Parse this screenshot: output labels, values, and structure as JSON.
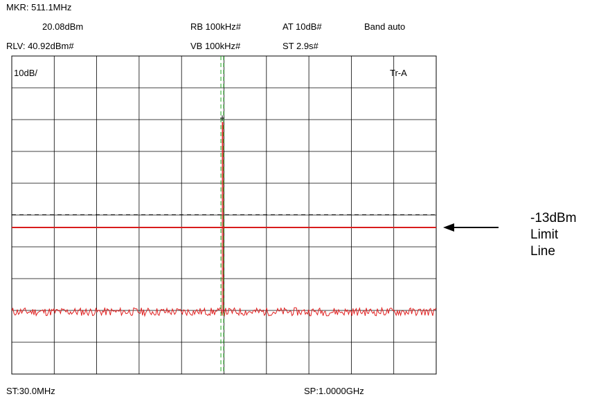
{
  "header": {
    "mkr": "MKR: 511.1MHz",
    "mkr_level": "20.08dBm",
    "rlv": "RLV: 40.92dBm#",
    "rbw": "RB 100kHz#",
    "vbw": "VB 100kHz#",
    "att": "AT 10dB#",
    "sweep": "ST 2.9s#",
    "band": "Band auto"
  },
  "footer": {
    "start": "ST:30.0MHz",
    "stop": "SP:1.0000GHz"
  },
  "annotation": {
    "lines": [
      "-13dBm",
      "Limit",
      "Line"
    ]
  },
  "chart_data": {
    "type": "line",
    "scale_label": "10dB/",
    "trace_label": "Tr-A",
    "x_unit": "MHz",
    "y_unit": "dBm",
    "xlim": [
      30.0,
      1000.0
    ],
    "ylim": [
      -59.08,
      40.92
    ],
    "reference_level_dBm": 40.92,
    "db_per_div": 10,
    "divisions": {
      "x": 10,
      "y": 10
    },
    "grid": true,
    "marker": {
      "x": 511.1,
      "y": 20.08
    },
    "limit_line_dBm": -13,
    "dashed_reference_dBm": -9,
    "noise_floor_dBm": -39.5,
    "colors": {
      "trace": "#e02020",
      "limit": "#d81c1c",
      "marker": "#22aa22",
      "grid": "#000000",
      "dashed": "#000000"
    },
    "series": [
      {
        "name": "Tr-A",
        "peak_x": 511.1,
        "peak_y": 20.08
      }
    ]
  }
}
